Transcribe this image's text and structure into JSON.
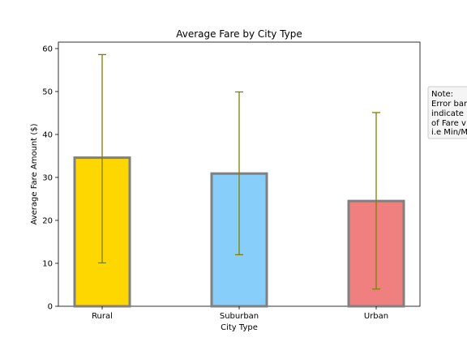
{
  "chart_data": {
    "type": "bar",
    "title": "Average Fare by City Type",
    "xlabel": "City Type",
    "ylabel": "Average Fare Amount ($)",
    "categories": [
      "Rural",
      "Suburban",
      "Urban"
    ],
    "values": [
      34.6,
      30.9,
      24.5
    ],
    "error_low": [
      10.1,
      12.0,
      4.0
    ],
    "error_high": [
      58.6,
      49.9,
      45.1
    ],
    "ylim": [
      0,
      61.5
    ],
    "yticks": [
      0,
      10,
      20,
      30,
      40,
      50,
      60
    ],
    "bar_colors": [
      "#FFD700",
      "#87CEFA",
      "#F08080"
    ],
    "bar_edge_color": "#808080",
    "error_color": "#808000",
    "grid": false,
    "legend": null
  },
  "note": {
    "lines": [
      "Note:",
      "Error bars",
      "indicate",
      "of Fare v",
      "i.e Min/M"
    ]
  }
}
